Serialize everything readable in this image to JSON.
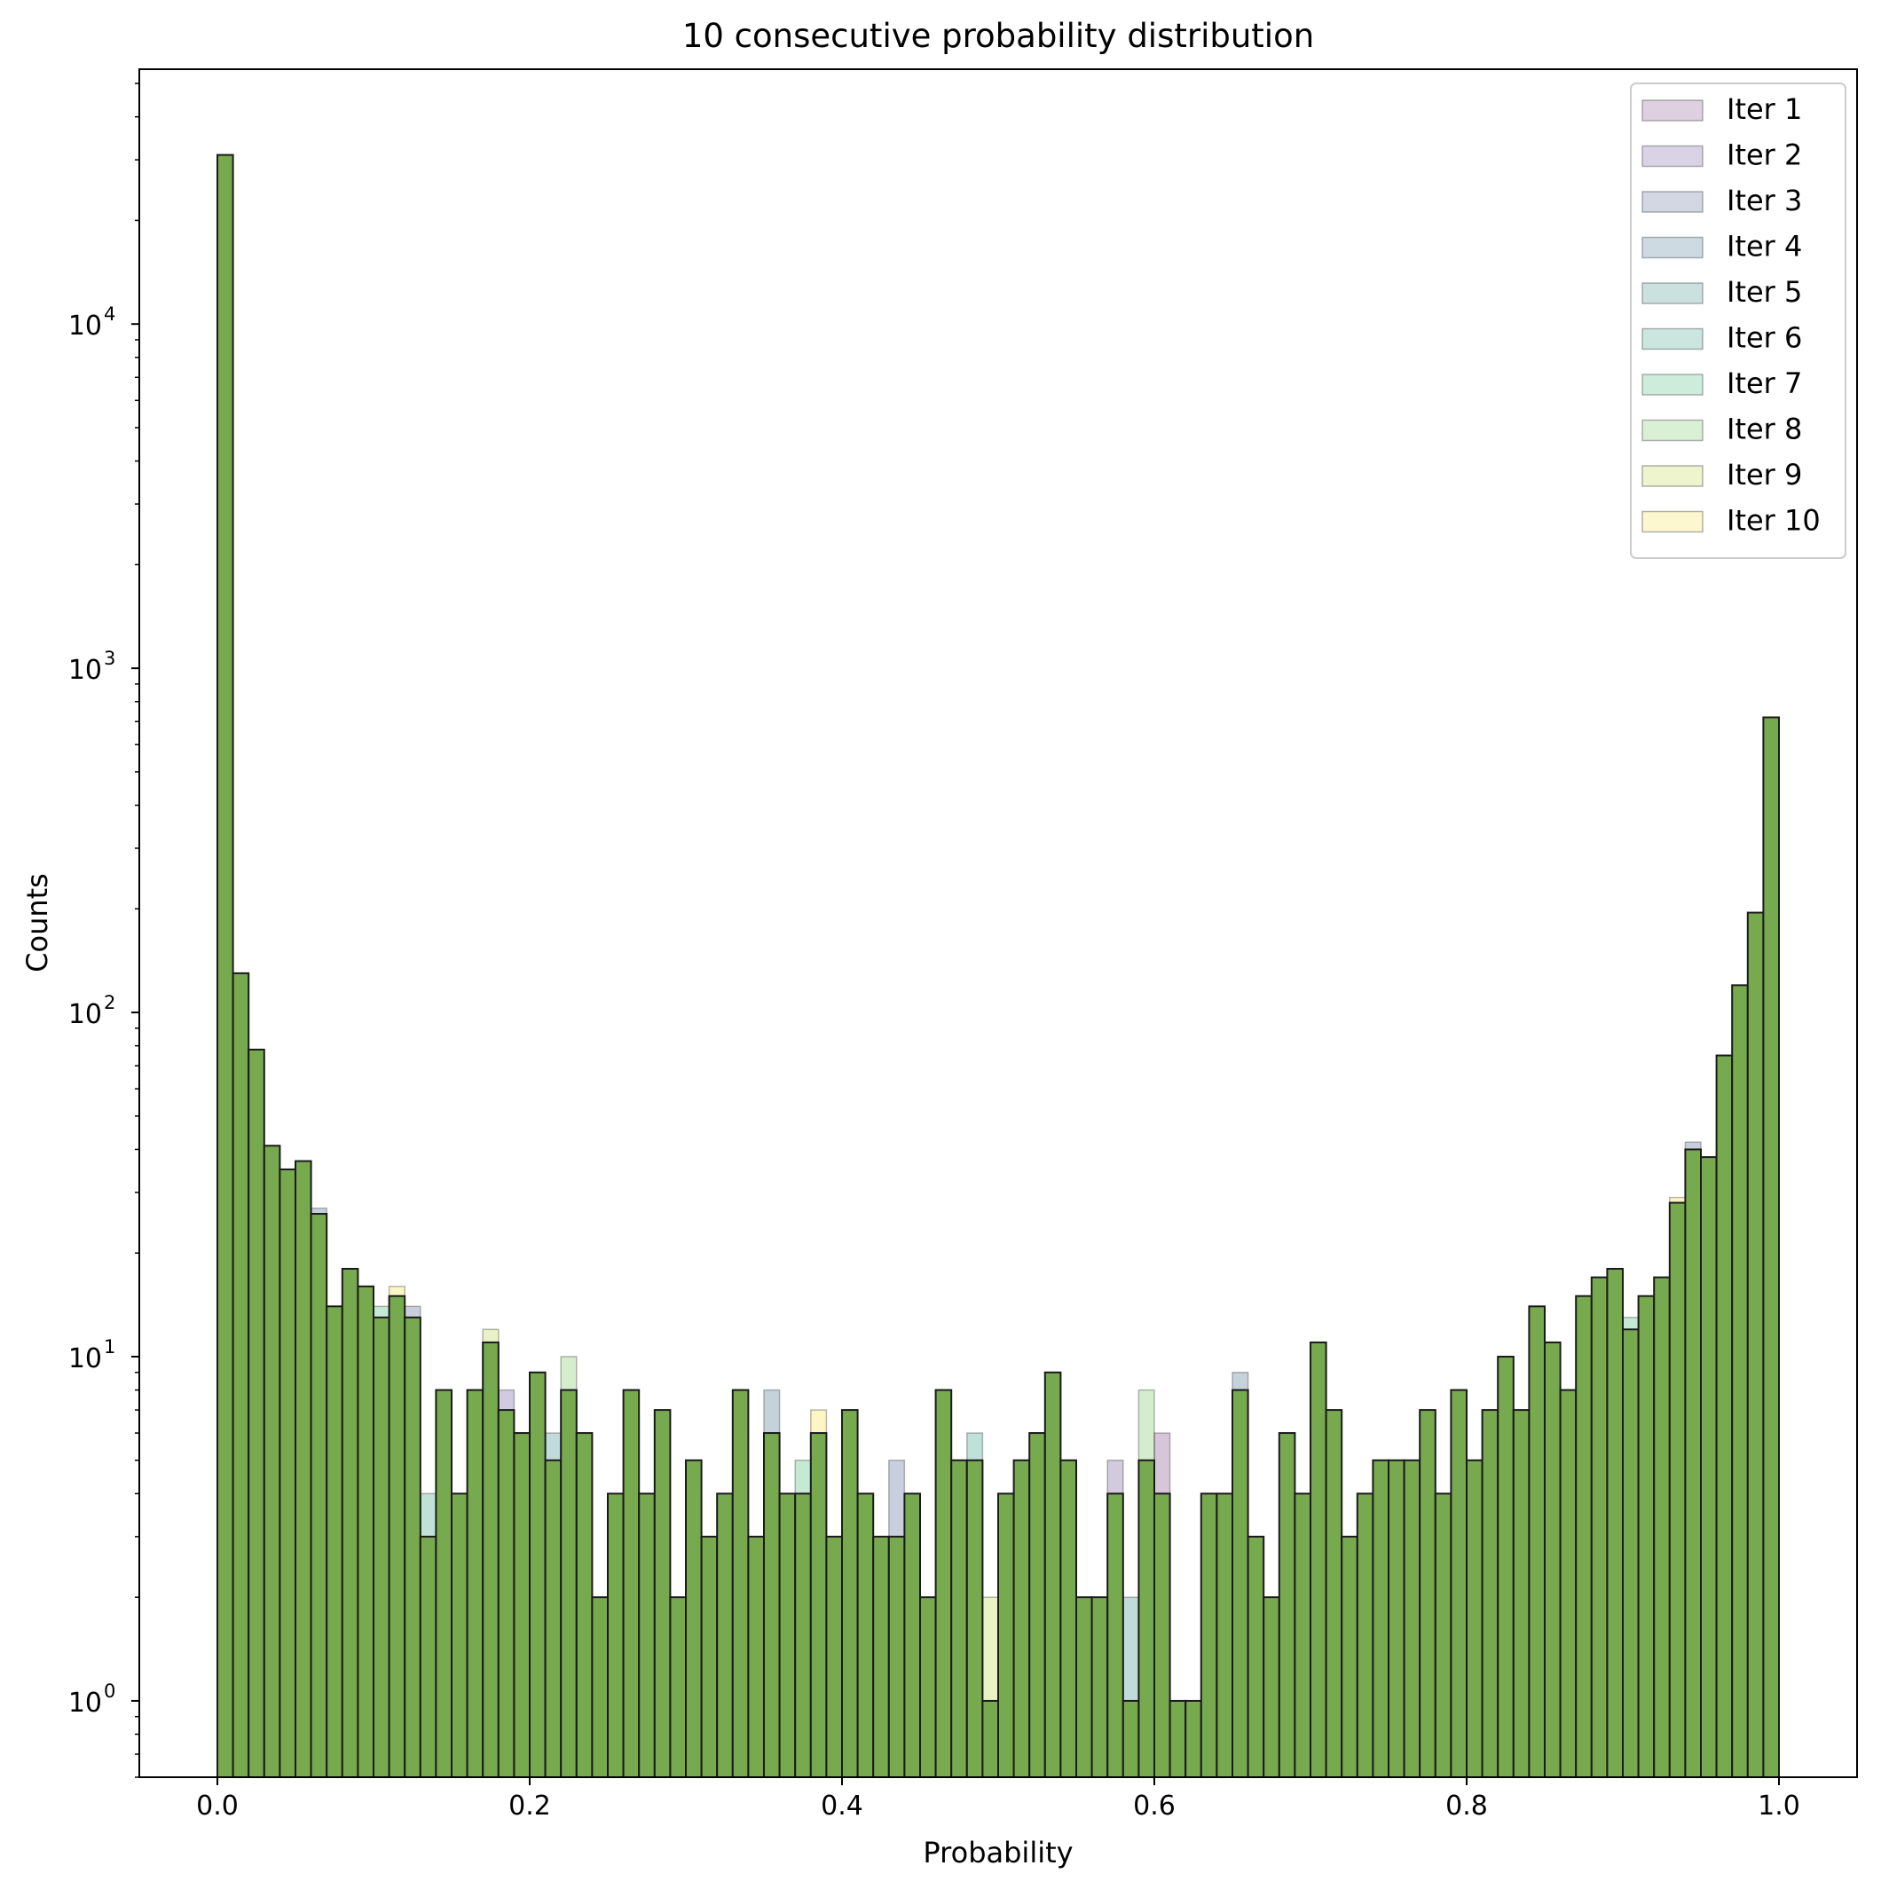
{
  "chart_data": {
    "type": "bar",
    "title": "10 consecutive probability distribution",
    "xlabel": "Probability",
    "ylabel": "Counts",
    "xlim": [
      -0.05,
      1.05
    ],
    "ylim": [
      0.6,
      55000
    ],
    "yscale": "log",
    "grid": false,
    "legend_position": "top-right",
    "bins": 100,
    "bin_range": [
      0,
      1
    ],
    "x_ticks": [
      {
        "value": 0.0,
        "label": "0.0"
      },
      {
        "value": 0.2,
        "label": "0.2"
      },
      {
        "value": 0.4,
        "label": "0.4"
      },
      {
        "value": 0.6,
        "label": "0.6"
      },
      {
        "value": 0.8,
        "label": "0.8"
      },
      {
        "value": 1.0,
        "label": "1.0"
      }
    ],
    "y_ticks": [
      {
        "value": 1,
        "base": "10",
        "exp": "0"
      },
      {
        "value": 10,
        "base": "10",
        "exp": "1"
      },
      {
        "value": 100,
        "base": "10",
        "exp": "2"
      },
      {
        "value": 1000,
        "base": "10",
        "exp": "3"
      },
      {
        "value": 10000,
        "base": "10",
        "exp": "4"
      }
    ],
    "series": [
      {
        "name": "Iter 1",
        "color": "#7a3f86"
      },
      {
        "name": "Iter 2",
        "color": "#6a4e96"
      },
      {
        "name": "Iter 3",
        "color": "#4f5f93"
      },
      {
        "name": "Iter 4",
        "color": "#3b6b8a"
      },
      {
        "name": "Iter 5",
        "color": "#2f8883"
      },
      {
        "name": "Iter 6",
        "color": "#2c9a7e"
      },
      {
        "name": "Iter 7",
        "color": "#3bb572"
      },
      {
        "name": "Iter 8",
        "color": "#6cc458"
      },
      {
        "name": "Iter 9",
        "color": "#b6d43a"
      },
      {
        "name": "Iter 10",
        "color": "#f5e03c"
      }
    ],
    "final_color": "#77a94f",
    "values": [
      31000,
      130,
      78,
      41,
      35,
      37,
      26,
      14,
      18,
      16,
      13,
      15,
      13,
      3,
      8,
      4,
      8,
      11,
      7,
      6,
      9,
      5,
      8,
      6,
      2,
      4,
      8,
      4,
      7,
      2,
      5,
      3,
      4,
      8,
      3,
      6,
      4,
      4,
      6,
      3,
      7,
      4,
      3,
      3,
      4,
      2,
      8,
      5,
      5,
      1,
      4,
      5,
      6,
      9,
      5,
      2,
      2,
      4,
      1,
      5,
      4,
      1,
      1,
      4,
      4,
      8,
      3,
      2,
      6,
      4,
      11,
      7,
      3,
      4,
      5,
      5,
      5,
      7,
      4,
      8,
      5,
      7,
      10,
      7,
      14,
      11,
      8,
      15,
      17,
      18,
      12,
      15,
      17,
      28,
      40,
      38,
      75,
      120,
      195,
      720
    ],
    "variant_values": [
      {
        "bin": 6,
        "value": 27
      },
      {
        "bin": 10,
        "value": 14
      },
      {
        "bin": 11,
        "value": 16
      },
      {
        "bin": 12,
        "value": 14
      },
      {
        "bin": 13,
        "value": 4
      },
      {
        "bin": 17,
        "value": 12
      },
      {
        "bin": 18,
        "value": 8
      },
      {
        "bin": 21,
        "value": 6
      },
      {
        "bin": 22,
        "value": 10
      },
      {
        "bin": 32,
        "value": 4
      },
      {
        "bin": 35,
        "value": 8
      },
      {
        "bin": 37,
        "value": 5
      },
      {
        "bin": 38,
        "value": 7
      },
      {
        "bin": 43,
        "value": 5
      },
      {
        "bin": 48,
        "value": 6
      },
      {
        "bin": 49,
        "value": 2
      },
      {
        "bin": 57,
        "value": 5
      },
      {
        "bin": 58,
        "value": 2
      },
      {
        "bin": 59,
        "value": 8
      },
      {
        "bin": 60,
        "value": 6
      },
      {
        "bin": 65,
        "value": 9
      },
      {
        "bin": 90,
        "value": 13
      },
      {
        "bin": 93,
        "value": 29
      },
      {
        "bin": 94,
        "value": 42
      }
    ]
  }
}
